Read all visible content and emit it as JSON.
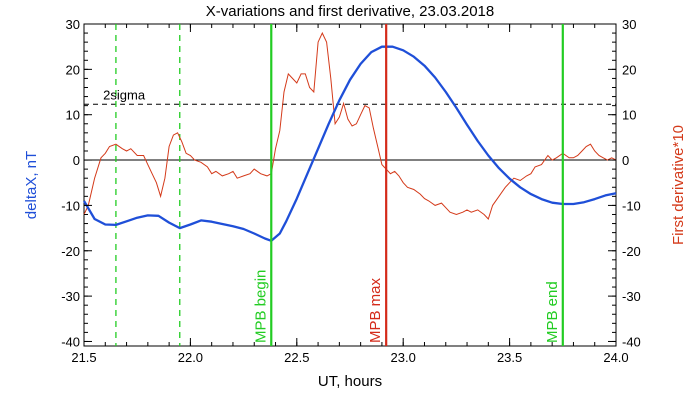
{
  "chart_data": {
    "type": "line",
    "title": "X-variations and first derivative, 23.03.2018",
    "xlabel": "UT, hours",
    "ylabel_left": "deltaX, nT",
    "ylabel_right": "First derivative*10",
    "xlim": [
      21.5,
      24.0
    ],
    "ylim": [
      -41,
      30
    ],
    "x_ticks": [
      21.5,
      22.0,
      22.5,
      23.0,
      23.5,
      24.0
    ],
    "x_tick_labels": [
      "21.5",
      "22.0",
      "22.5",
      "23.0",
      "23.5",
      "24.0"
    ],
    "y_ticks": [
      -40,
      -30,
      -20,
      -10,
      0,
      10,
      20,
      30
    ],
    "y_tick_labels": [
      "-40",
      "-30",
      "-20",
      "-10",
      "0",
      "10",
      "20",
      "30"
    ],
    "colors": {
      "deltaX": "#1f4fd8",
      "derivative": "#d43a1a",
      "mpb_boundary": "#22cc22",
      "mpb_max": "#d42a1a",
      "dashed_green": "#22cc22",
      "threshold": "#000000"
    },
    "threshold": {
      "label": "2sigma",
      "y": 12.3
    },
    "zero_line": 0,
    "dashed_markers": [
      21.65,
      21.95
    ],
    "markers": [
      {
        "label": "MPB begin",
        "x": 22.38,
        "color": "#22cc22"
      },
      {
        "label": "MPB max",
        "x": 22.92,
        "color": "#d42a1a"
      },
      {
        "label": "MPB end",
        "x": 23.75,
        "color": "#22cc22"
      }
    ],
    "series": [
      {
        "name": "deltaX",
        "x": [
          21.5,
          21.55,
          21.6,
          21.65,
          21.7,
          21.75,
          21.8,
          21.85,
          21.9,
          21.95,
          22.0,
          22.05,
          22.1,
          22.15,
          22.2,
          22.25,
          22.3,
          22.35,
          22.38,
          22.42,
          22.45,
          22.5,
          22.55,
          22.6,
          22.65,
          22.7,
          22.75,
          22.8,
          22.85,
          22.9,
          22.95,
          23.0,
          23.05,
          23.1,
          23.15,
          23.2,
          23.25,
          23.3,
          23.35,
          23.4,
          23.45,
          23.5,
          23.55,
          23.6,
          23.65,
          23.7,
          23.75,
          23.8,
          23.85,
          23.9,
          23.95,
          24.0
        ],
        "values": [
          -9,
          -13,
          -14.2,
          -14.3,
          -13.5,
          -12.7,
          -12.2,
          -12.3,
          -13.8,
          -15,
          -14.2,
          -13.3,
          -13.6,
          -14.1,
          -14.6,
          -15.2,
          -16.2,
          -17.3,
          -17.8,
          -16.2,
          -13.5,
          -8.5,
          -3,
          2.5,
          8,
          13.2,
          17.7,
          21.2,
          23.8,
          25,
          25,
          24.2,
          22.8,
          20.8,
          18.2,
          15,
          11.5,
          7.8,
          4.2,
          1,
          -1.8,
          -4.1,
          -6,
          -7.5,
          -8.6,
          -9.4,
          -9.7,
          -9.7,
          -9.3,
          -8.6,
          -7.8,
          -7.3
        ]
      },
      {
        "name": "derivative",
        "x": [
          21.5,
          21.52,
          21.55,
          21.58,
          21.6,
          21.62,
          21.65,
          21.68,
          21.7,
          21.72,
          21.75,
          21.78,
          21.8,
          21.82,
          21.84,
          21.86,
          21.88,
          21.9,
          21.92,
          21.94,
          21.96,
          21.98,
          22.0,
          22.02,
          22.05,
          22.08,
          22.1,
          22.12,
          22.15,
          22.18,
          22.2,
          22.22,
          22.25,
          22.28,
          22.3,
          22.33,
          22.36,
          22.38,
          22.4,
          22.42,
          22.44,
          22.46,
          22.48,
          22.5,
          22.52,
          22.54,
          22.56,
          22.58,
          22.6,
          22.62,
          22.64,
          22.66,
          22.68,
          22.7,
          22.72,
          22.74,
          22.76,
          22.78,
          22.8,
          22.82,
          22.84,
          22.86,
          22.88,
          22.9,
          22.92,
          22.94,
          22.96,
          22.98,
          23.0,
          23.02,
          23.05,
          23.08,
          23.1,
          23.12,
          23.15,
          23.18,
          23.2,
          23.22,
          23.25,
          23.28,
          23.3,
          23.32,
          23.35,
          23.38,
          23.4,
          23.42,
          23.45,
          23.48,
          23.5,
          23.52,
          23.55,
          23.58,
          23.6,
          23.62,
          23.65,
          23.68,
          23.7,
          23.72,
          23.75,
          23.78,
          23.8,
          23.82,
          23.84,
          23.86,
          23.88,
          23.9,
          23.92,
          23.94,
          23.96,
          23.98,
          24.0
        ],
        "values": [
          -12,
          -10,
          -4,
          0.5,
          1.5,
          3,
          3.5,
          2.5,
          2,
          2.5,
          1,
          1,
          -1,
          -3,
          -5,
          -8,
          -4,
          3,
          5.5,
          6,
          4,
          1.5,
          1,
          0,
          -0.5,
          -1.5,
          -3,
          -2.5,
          -3.5,
          -3,
          -2.5,
          -4,
          -3.5,
          -3,
          -2,
          -3,
          -3.5,
          -3,
          2.5,
          6.5,
          15,
          19,
          18,
          17,
          19,
          19,
          16,
          15,
          26,
          28,
          26,
          18,
          8,
          9.5,
          12.5,
          9,
          7.5,
          8,
          10,
          12,
          11.5,
          7,
          3,
          -1,
          -2,
          -3,
          -2.5,
          -3.5,
          -5,
          -6,
          -6.5,
          -7.5,
          -8.5,
          -9,
          -10,
          -9.5,
          -10.5,
          -11.5,
          -12,
          -11.5,
          -11,
          -11.5,
          -11,
          -12,
          -13,
          -10,
          -8,
          -6,
          -5,
          -4,
          -4.5,
          -3.5,
          -3,
          -1.5,
          -1,
          1,
          0,
          0.5,
          1.5,
          0.5,
          0.5,
          1,
          2,
          3,
          3.5,
          2,
          1,
          0.5,
          0,
          0.5,
          0
        ]
      }
    ]
  }
}
